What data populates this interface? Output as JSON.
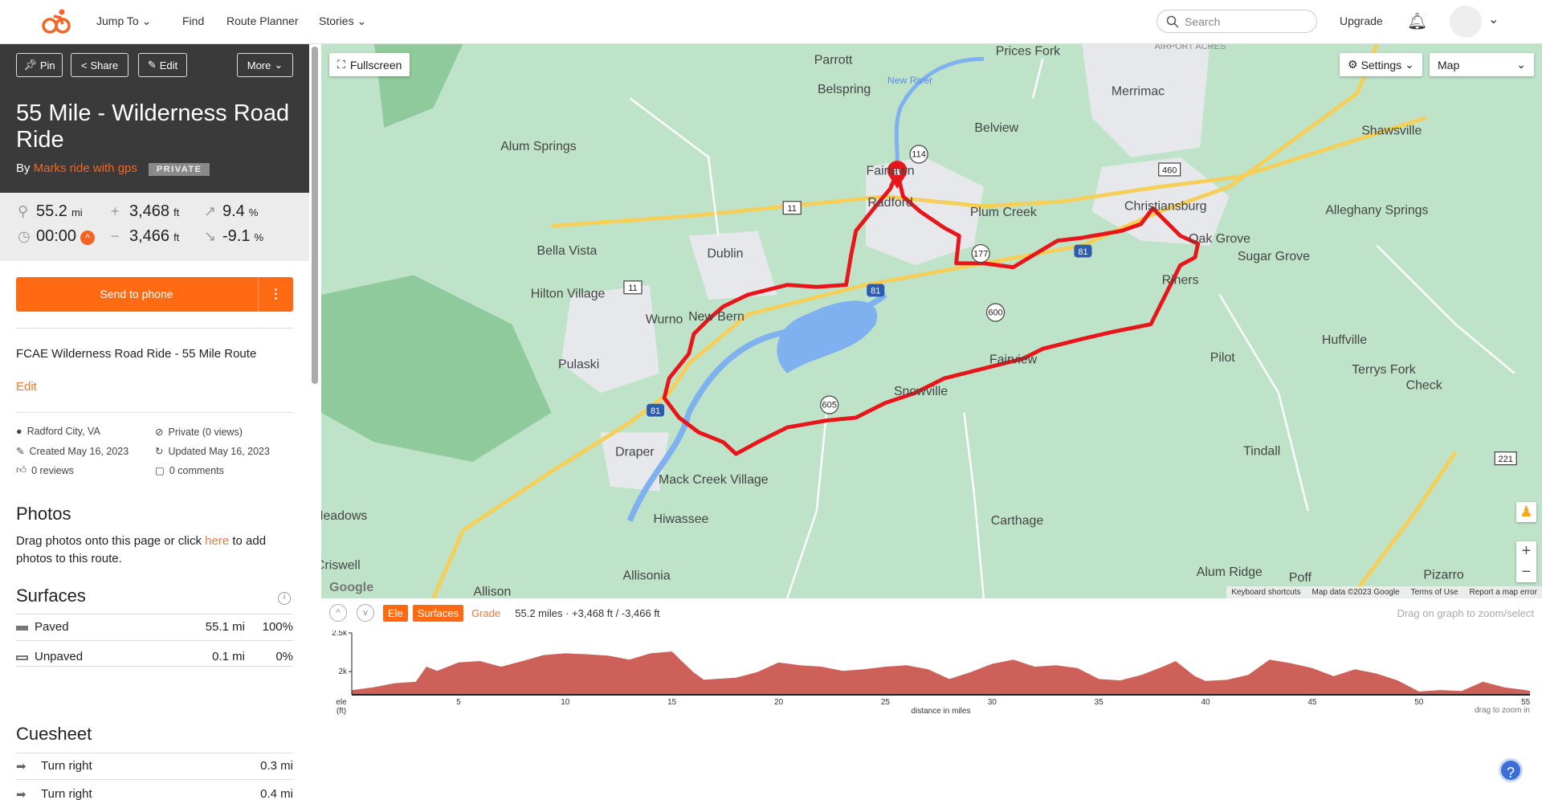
{
  "nav": {
    "jump_to": "Jump To",
    "find": "Find",
    "route_planner": "Route Planner",
    "stories": "Stories",
    "search_placeholder": "Search",
    "upgrade": "Upgrade"
  },
  "colors": {
    "brand": "#ff6a13",
    "route": "#e8151b",
    "elevation_fill": "#cd6058"
  },
  "route": {
    "actions": {
      "pin": "Pin",
      "share": "Share",
      "edit": "Edit",
      "more": "More"
    },
    "title": "55 Mile - Wilderness Road Ride",
    "by": "By",
    "author": "Marks ride with gps",
    "privacy_badge": "PRIVATE",
    "stats": {
      "distance": "55.2",
      "distance_unit": "mi",
      "gain": "3,468",
      "gain_unit": "ft",
      "max_grade": "9.4",
      "max_grade_unit": "%",
      "time": "00:00",
      "loss": "3,466",
      "loss_unit": "ft",
      "min_grade": "-9.1",
      "min_grade_unit": "%"
    },
    "send_to_phone": "Send to phone",
    "description": "FCAE Wilderness Road Ride - 55 Mile Route",
    "edit_link": "Edit",
    "meta": {
      "location": "Radford City, VA",
      "visibility": "Private (0 views)",
      "created": "Created May 16, 2023",
      "updated": "Updated May 16, 2023",
      "reviews": "0 reviews",
      "comments": "0 comments"
    },
    "photos": {
      "heading": "Photos",
      "text_before": "Drag photos onto this page or click ",
      "link": "here",
      "text_after": " to add photos to this route."
    },
    "surfaces": {
      "heading": "Surfaces",
      "rows": [
        {
          "name": "Paved",
          "distance": "55.1 mi",
          "percent": "100%"
        },
        {
          "name": "Unpaved",
          "distance": "0.1 mi",
          "percent": "0%"
        }
      ]
    },
    "cuesheet": {
      "heading": "Cuesheet",
      "rows": [
        {
          "instruction": "Turn right",
          "distance": "0.3 mi"
        },
        {
          "instruction": "Turn right",
          "distance": "0.4 mi"
        }
      ]
    }
  },
  "map": {
    "fullscreen": "Fullscreen",
    "settings": "Settings",
    "map_type": "Map",
    "attribution": [
      "Keyboard shortcuts",
      "Map data ©2023 Google",
      "Terms of Use",
      "Report a map error"
    ],
    "google": "Google",
    "places": [
      "Parrott",
      "Prices Fork",
      "Belspring",
      "Merrimac",
      "Belview",
      "Shawsville",
      "Alum Springs",
      "Fairlawn",
      "Radford",
      "Plum Creek",
      "Christiansburg",
      "Alleghany Springs",
      "Bella Vista",
      "Dublin",
      "Oak Grove",
      "Sugar Grove",
      "Hilton Village",
      "Wurno",
      "New Bern",
      "Riners",
      "Huffville",
      "Pulaski",
      "Pilot",
      "Terrys Fork",
      "Fairview",
      "Check",
      "Snowville",
      "Draper",
      "Tindall",
      "Mack Creek Village",
      "Hiwassee",
      "Carthage",
      "Allisonia",
      "Alum Ridge",
      "Poff",
      "Pizarro",
      "Allison",
      "Meadows",
      "Criswell",
      "AIRPORT ACRES",
      "New River"
    ],
    "shields": [
      "81",
      "81",
      "81",
      "11",
      "11",
      "460",
      "114",
      "177",
      "600",
      "605",
      "221"
    ]
  },
  "elevation": {
    "tabs": [
      "Ele",
      "Surfaces",
      "Grade"
    ],
    "summary": "55.2 miles · +3,468 ft / -3,466 ft",
    "hint": "Drag on graph to zoom/select",
    "ylabel": "ele",
    "yunit": "(ft)",
    "xlabel": "distance in miles",
    "zoom_hint": "drag to zoom in"
  },
  "chart_data": {
    "type": "area",
    "xlabel": "distance in miles",
    "ylabel": "ele (ft)",
    "xlim": [
      0,
      55.2
    ],
    "ylim": [
      1700,
      2500
    ],
    "xticks": [
      5,
      10,
      15,
      20,
      25,
      30,
      35,
      40,
      45,
      50,
      55
    ],
    "yticks": [
      {
        "value": 2000,
        "label": "2k"
      },
      {
        "value": 2500,
        "label": "2.5k"
      }
    ],
    "x": [
      0,
      1,
      2,
      3,
      3.5,
      4,
      5,
      6,
      7,
      8,
      9,
      10,
      11,
      12,
      13,
      14,
      15,
      16,
      16.5,
      17,
      18,
      19,
      20,
      21,
      22,
      23,
      24,
      25,
      26,
      27,
      28,
      29,
      30,
      31,
      32,
      33,
      34,
      35,
      36,
      37,
      38,
      38.6,
      39.5,
      40,
      41,
      42,
      43,
      44,
      45,
      46,
      47,
      48,
      49,
      50,
      51,
      52,
      53,
      54,
      55,
      55.2
    ],
    "y": [
      1760,
      1796,
      1850,
      1868,
      2064,
      2010,
      2118,
      2136,
      2064,
      2136,
      2214,
      2236,
      2225,
      2207,
      2154,
      2236,
      2260,
      1993,
      1893,
      1904,
      1921,
      1993,
      2118,
      2082,
      2064,
      2010,
      2029,
      2064,
      2082,
      2029,
      1904,
      1993,
      2100,
      2154,
      2064,
      2082,
      2046,
      1904,
      1886,
      1957,
      2064,
      2136,
      1940,
      1879,
      1893,
      1957,
      2154,
      2107,
      2046,
      1940,
      2029,
      1975,
      1886,
      1743,
      1761,
      1750,
      1868,
      1796,
      1761,
      1750
    ]
  }
}
